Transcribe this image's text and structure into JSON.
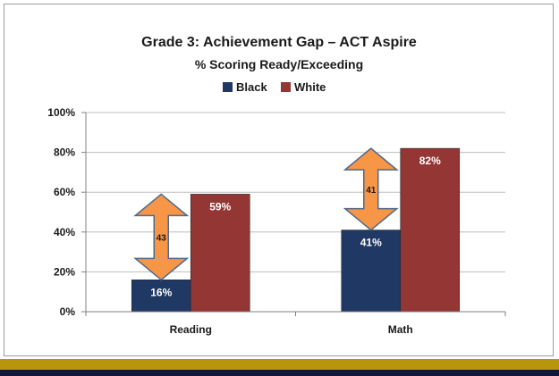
{
  "chart_data": {
    "type": "bar",
    "title": "Grade 3: Achievement Gap – ACT Aspire",
    "subtitle": "% Scoring Ready/Exceeding",
    "categories": [
      "Reading",
      "Math"
    ],
    "series": [
      {
        "name": "Black",
        "values": [
          16,
          41
        ],
        "labels": [
          "16%",
          "41%"
        ],
        "color": "#1f3864",
        "label_color": "#ffffff"
      },
      {
        "name": "White",
        "values": [
          59,
          82
        ],
        "labels": [
          "59%",
          "82%"
        ],
        "color": "#943634",
        "label_color": "#ffffff"
      }
    ],
    "ylim": [
      0,
      100
    ],
    "yticks": [
      "0%",
      "20%",
      "40%",
      "60%",
      "80%",
      "100%"
    ],
    "grid": true,
    "legend": "top-center",
    "gap_annotations": [
      {
        "category": "Reading",
        "value": "43",
        "color": "#f79646"
      },
      {
        "category": "Math",
        "value": "41",
        "color": "#f79646"
      }
    ]
  }
}
